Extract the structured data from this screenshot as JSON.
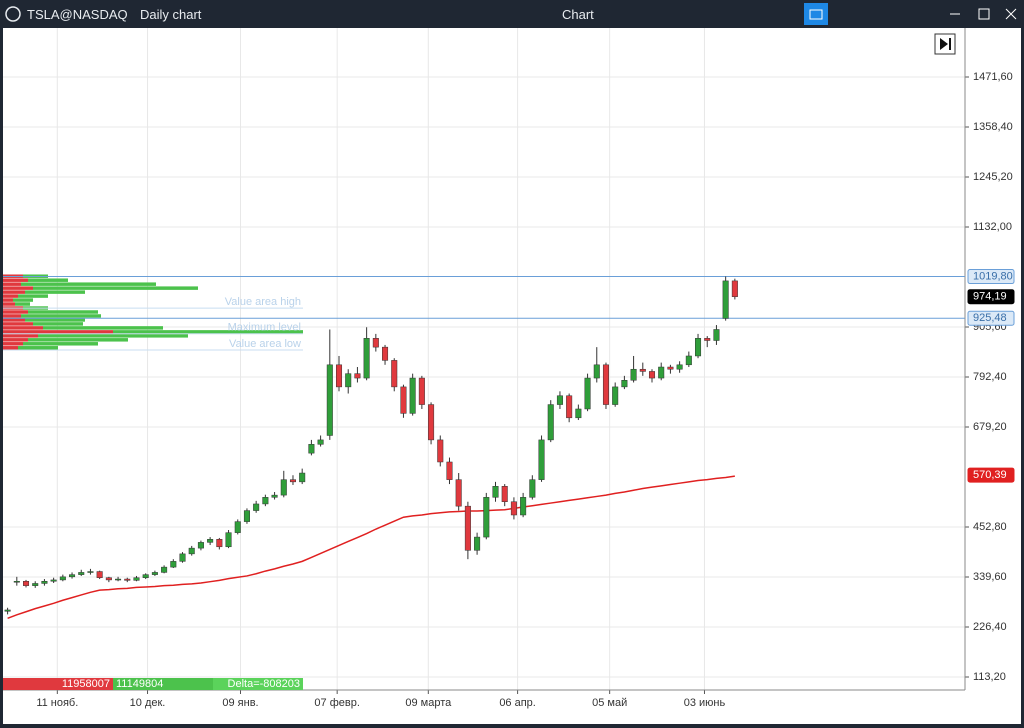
{
  "toolbar": {
    "symbol": "TSLA@NASDAQ",
    "timeframe": "Daily chart",
    "title": "Chart"
  },
  "chart_data": {
    "type": "candlestick",
    "candles": [
      [
        262,
        270,
        255,
        265
      ],
      [
        328,
        340,
        320,
        330
      ],
      [
        330,
        333,
        316,
        320
      ],
      [
        320,
        330,
        315,
        325
      ],
      [
        325,
        335,
        320,
        330
      ],
      [
        330,
        338,
        326,
        333
      ],
      [
        333,
        345,
        330,
        340
      ],
      [
        340,
        350,
        336,
        345
      ],
      [
        345,
        356,
        342,
        350
      ],
      [
        350,
        358,
        345,
        352
      ],
      [
        352,
        354,
        335,
        338
      ],
      [
        338,
        340,
        328,
        333
      ],
      [
        333,
        340,
        330,
        335
      ],
      [
        335,
        338,
        328,
        332
      ],
      [
        332,
        342,
        330,
        338
      ],
      [
        338,
        348,
        335,
        345
      ],
      [
        345,
        354,
        342,
        350
      ],
      [
        350,
        366,
        348,
        362
      ],
      [
        362,
        380,
        360,
        375
      ],
      [
        375,
        396,
        372,
        392
      ],
      [
        392,
        410,
        388,
        405
      ],
      [
        405,
        422,
        400,
        418
      ],
      [
        418,
        430,
        412,
        425
      ],
      [
        425,
        428,
        402,
        408
      ],
      [
        408,
        446,
        405,
        440
      ],
      [
        440,
        470,
        436,
        465
      ],
      [
        465,
        495,
        460,
        490
      ],
      [
        490,
        512,
        485,
        505
      ],
      [
        505,
        526,
        500,
        520
      ],
      [
        520,
        532,
        515,
        525
      ],
      [
        525,
        580,
        520,
        560
      ],
      [
        560,
        570,
        548,
        555
      ],
      [
        555,
        585,
        550,
        575
      ],
      [
        620,
        650,
        615,
        640
      ],
      [
        640,
        660,
        635,
        650
      ],
      [
        660,
        900,
        650,
        820
      ],
      [
        820,
        840,
        760,
        770
      ],
      [
        770,
        810,
        755,
        800
      ],
      [
        800,
        815,
        780,
        790
      ],
      [
        790,
        905,
        785,
        880
      ],
      [
        880,
        890,
        850,
        860
      ],
      [
        860,
        865,
        820,
        830
      ],
      [
        830,
        835,
        760,
        770
      ],
      [
        770,
        775,
        700,
        710
      ],
      [
        710,
        800,
        705,
        790
      ],
      [
        790,
        795,
        720,
        730
      ],
      [
        730,
        735,
        640,
        650
      ],
      [
        650,
        660,
        590,
        600
      ],
      [
        600,
        610,
        550,
        560
      ],
      [
        560,
        575,
        490,
        500
      ],
      [
        500,
        510,
        380,
        400
      ],
      [
        400,
        440,
        390,
        430
      ],
      [
        430,
        530,
        425,
        520
      ],
      [
        520,
        555,
        510,
        545
      ],
      [
        545,
        550,
        500,
        510
      ],
      [
        510,
        520,
        470,
        480
      ],
      [
        480,
        530,
        475,
        520
      ],
      [
        520,
        570,
        515,
        560
      ],
      [
        560,
        660,
        555,
        650
      ],
      [
        650,
        740,
        645,
        730
      ],
      [
        730,
        760,
        720,
        750
      ],
      [
        750,
        755,
        690,
        700
      ],
      [
        700,
        730,
        695,
        720
      ],
      [
        720,
        800,
        715,
        790
      ],
      [
        790,
        860,
        780,
        820
      ],
      [
        820,
        825,
        720,
        730
      ],
      [
        730,
        780,
        725,
        770
      ],
      [
        770,
        795,
        765,
        785
      ],
      [
        785,
        840,
        780,
        810
      ],
      [
        810,
        825,
        795,
        805
      ],
      [
        805,
        810,
        780,
        790
      ],
      [
        790,
        825,
        785,
        815
      ],
      [
        815,
        820,
        800,
        810
      ],
      [
        810,
        828,
        802,
        820
      ],
      [
        820,
        850,
        815,
        840
      ],
      [
        840,
        890,
        835,
        880
      ],
      [
        880,
        885,
        860,
        875
      ],
      [
        875,
        910,
        865,
        900
      ],
      [
        925,
        1020,
        920,
        1010
      ],
      [
        1010,
        1015,
        968,
        974.19
      ]
    ],
    "moving_average": {
      "color": "#e02020",
      "values": [
        246,
        254,
        261,
        268,
        274,
        280,
        287,
        293,
        299,
        305,
        310,
        311,
        313,
        314,
        316,
        317,
        318,
        320,
        321,
        323,
        324,
        326,
        329,
        332,
        336,
        339,
        342,
        347,
        353,
        358,
        364,
        369,
        375,
        384,
        393,
        402,
        411,
        420,
        429,
        438,
        448,
        457,
        466,
        475,
        478,
        480,
        483,
        485,
        487,
        488,
        489,
        489,
        490,
        491,
        492,
        495,
        498,
        501,
        504,
        507,
        510,
        513,
        516,
        519,
        522,
        525,
        529,
        532,
        536,
        540,
        543,
        546,
        549,
        552,
        555,
        558,
        560,
        563,
        565,
        568
      ]
    },
    "up_color": "#2f9e3a",
    "down_color": "#e0393e",
    "xlim": [
      -0.5,
      104
    ],
    "xticks": [
      {
        "value": 5.4,
        "label": "11 нояб."
      },
      {
        "value": 15.2,
        "label": "10 дек."
      },
      {
        "value": 25.3,
        "label": "09 янв."
      },
      {
        "value": 35.8,
        "label": "07 февр."
      },
      {
        "value": 45.7,
        "label": "09 марта"
      },
      {
        "value": 55.4,
        "label": "06 апр."
      },
      {
        "value": 65.4,
        "label": "05 май"
      },
      {
        "value": 75.7,
        "label": "03 июнь"
      }
    ],
    "ylim": [
      83.8,
      1582.5
    ],
    "yticks": [
      {
        "value": 113.2,
        "label": "113,20"
      },
      {
        "value": 226.4,
        "label": "226,40"
      },
      {
        "value": 339.6,
        "label": "339,60"
      },
      {
        "value": 452.8,
        "label": "452,80"
      },
      {
        "value": 679.2,
        "label": "679,20"
      },
      {
        "value": 792.4,
        "label": "792,40"
      },
      {
        "value": 905.6,
        "label": "905,60"
      },
      {
        "value": 1132,
        "label": "1132,00"
      },
      {
        "value": 1245.2,
        "label": "1245,20"
      },
      {
        "value": 1358.4,
        "label": "1358,40"
      },
      {
        "value": 1471.6,
        "label": "1471,60"
      }
    ],
    "grid": true,
    "price_markers": [
      {
        "value": 1019.8,
        "label": "1019,80",
        "color": "#6a9fd8",
        "line": true
      },
      {
        "value": 974.19,
        "label": "974,19",
        "color": "#000000",
        "line": false
      },
      {
        "value": 925.48,
        "label": "925,48",
        "color": "#6a9fd8",
        "line": true
      },
      {
        "value": 570.39,
        "label": "570,39",
        "color": "#e02020",
        "line": false
      }
    ],
    "volume_profile": {
      "price_levels": [
        1020,
        1011,
        1002,
        993,
        984,
        975,
        966,
        957,
        948,
        939,
        930,
        921,
        912,
        903,
        894,
        885,
        876,
        867,
        858
      ],
      "sell": [
        20,
        25,
        18,
        30,
        22,
        15,
        10,
        12,
        20,
        25,
        18,
        22,
        30,
        40,
        110,
        35,
        25,
        20,
        15
      ],
      "buy": [
        25,
        40,
        135,
        165,
        60,
        30,
        20,
        15,
        25,
        70,
        80,
        60,
        50,
        120,
        190,
        150,
        100,
        75,
        40
      ],
      "levels": [
        {
          "text": "Value area high",
          "value": 962
        },
        {
          "text": "Maximum level",
          "value": 904
        },
        {
          "text": "Value area low",
          "value": 867
        }
      ]
    },
    "totals": {
      "sell": 11958007,
      "buy": 11149804,
      "delta": "Delta=-808203"
    }
  }
}
